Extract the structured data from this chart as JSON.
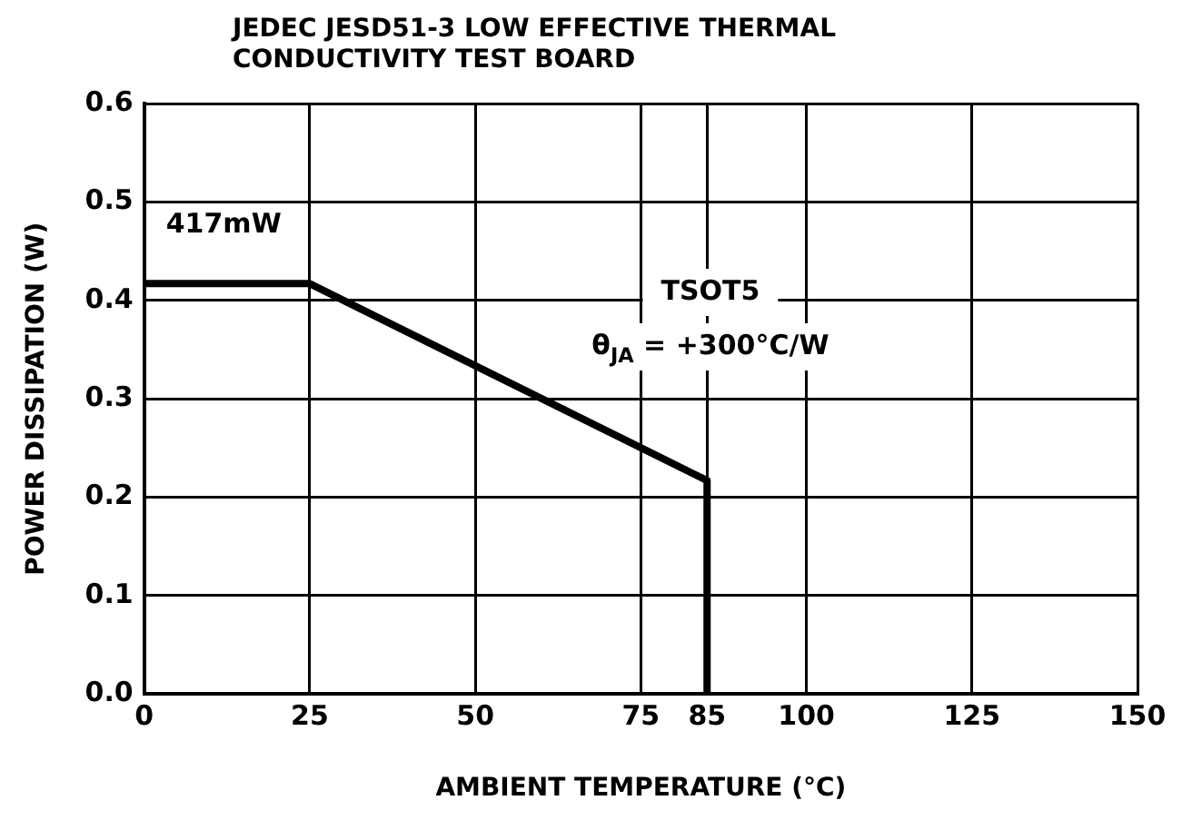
{
  "chart_data": {
    "type": "line",
    "title": "JEDEC JESD51-3 LOW EFFECTIVE THERMAL CONDUCTIVITY TEST BOARD",
    "xlabel": "AMBIENT TEMPERATURE (°C)",
    "ylabel": "POWER DISSIPATION (W)",
    "x": [
      0,
      25,
      85,
      85
    ],
    "series": [
      {
        "color": "#000000",
        "values": [
          0.417,
          0.417,
          0.217,
          0
        ]
      }
    ],
    "xlim": [
      0,
      150
    ],
    "xticks": [
      0,
      25,
      50,
      75,
      85,
      100,
      125,
      150
    ],
    "ylim": [
      0,
      0.6
    ],
    "yticks": [
      {
        "value": 0,
        "label": "0.0"
      },
      0.1,
      0.2,
      0.3,
      0.4,
      0.5,
      0.6
    ],
    "grid": true,
    "legend": false,
    "marker": "none",
    "line_style": "solid",
    "annotations": [
      {
        "text": "417mW",
        "x": 0,
        "y": 0.417
      },
      "TSOT5",
      "θ$_{JA}$ = +300°C/W"
    ]
  }
}
